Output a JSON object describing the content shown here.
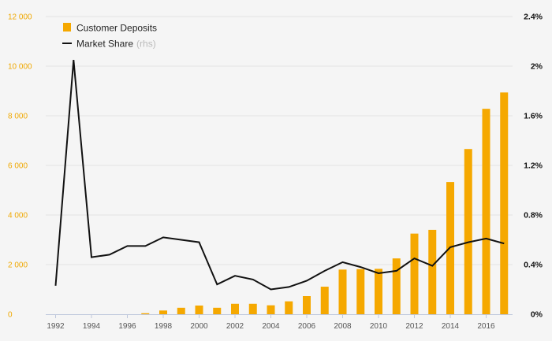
{
  "chart_data": {
    "type": "bar",
    "x": [
      1992,
      1993,
      1994,
      1995,
      1996,
      1997,
      1998,
      1999,
      2000,
      2001,
      2002,
      2003,
      2004,
      2005,
      2006,
      2007,
      2008,
      2009,
      2010,
      2011,
      2012,
      2013,
      2014,
      2015,
      2016,
      2017
    ],
    "x_tick_labels": [
      "1992",
      "1994",
      "1996",
      "1998",
      "2000",
      "2002",
      "2004",
      "2006",
      "2008",
      "2010",
      "2012",
      "2014",
      "2016"
    ],
    "y_left_tick_labels": [
      "0",
      "2 000",
      "4 000",
      "6 000",
      "8 000",
      "10 000",
      "12 000"
    ],
    "y_right_tick_labels": [
      "0%",
      "0.4%",
      "0.8%",
      "1.2%",
      "1.6%",
      "2%",
      "2.4%"
    ],
    "ylim_left": [
      0,
      12000
    ],
    "ylim_right": [
      0,
      2.4
    ],
    "grid": true,
    "legend_position": "top-left",
    "series": [
      {
        "name": "Customer Deposits",
        "type": "bar",
        "axis": "left",
        "color": "#f5a800",
        "values": [
          0,
          0,
          0,
          0,
          0,
          40,
          150,
          260,
          350,
          260,
          420,
          420,
          360,
          520,
          730,
          1110,
          1800,
          1820,
          1830,
          2250,
          3250,
          3400,
          5330,
          6660,
          8280,
          8940
        ]
      },
      {
        "name": "Market Share",
        "name_suffix": "(rhs)",
        "type": "line",
        "axis": "right",
        "color": "#111111",
        "values": [
          0.23,
          2.05,
          0.46,
          0.48,
          0.55,
          0.55,
          0.62,
          0.6,
          0.58,
          0.24,
          0.31,
          0.28,
          0.2,
          0.22,
          0.27,
          0.35,
          0.42,
          0.38,
          0.33,
          0.35,
          0.45,
          0.39,
          0.54,
          0.58,
          0.61,
          0.57
        ]
      }
    ]
  }
}
